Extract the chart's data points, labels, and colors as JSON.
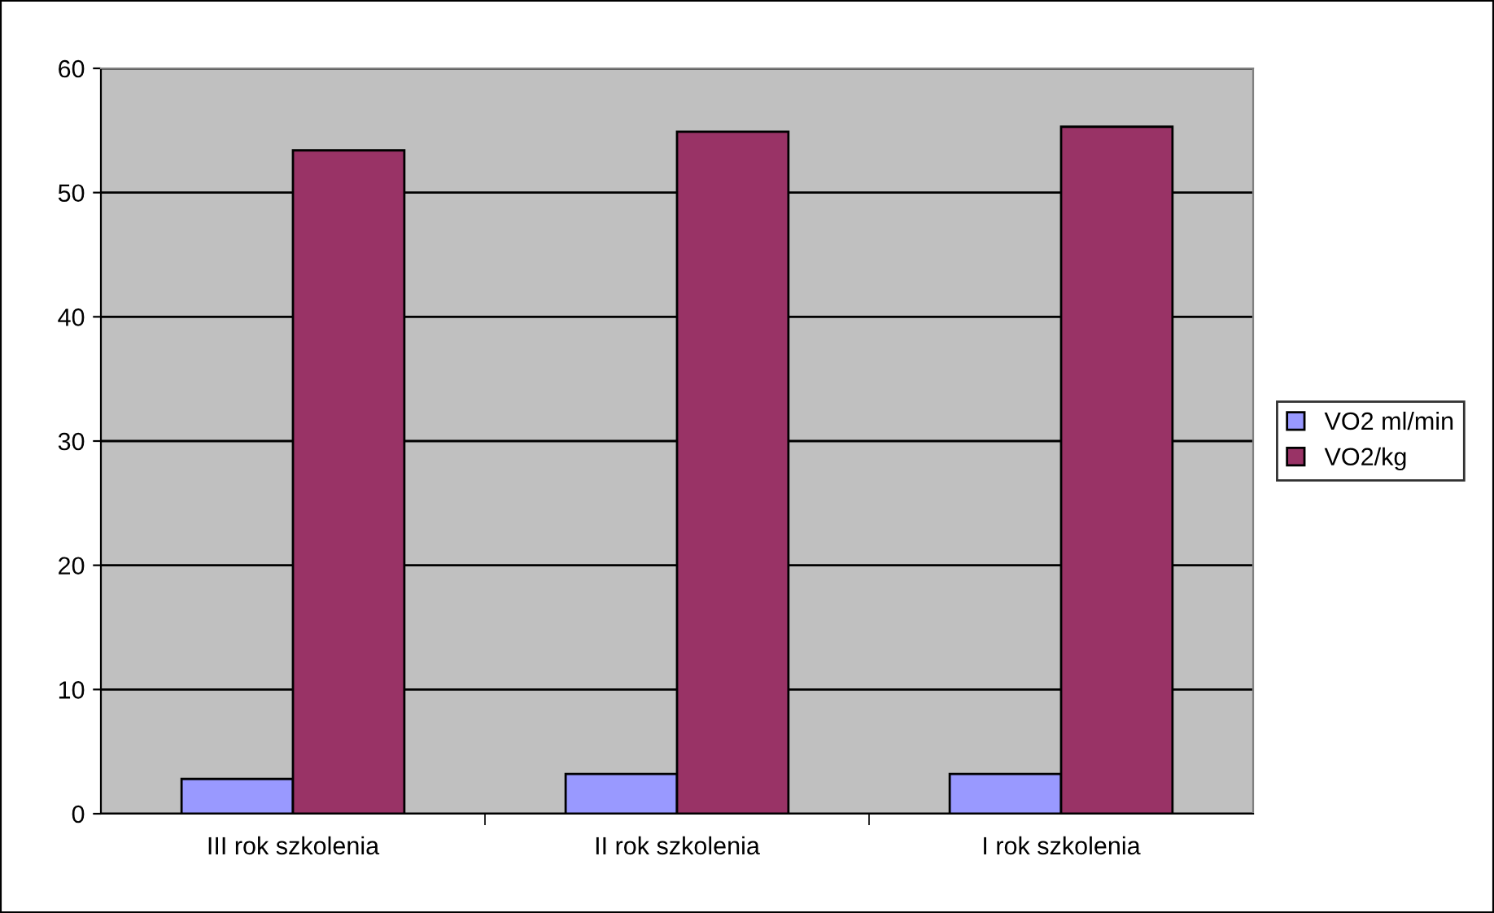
{
  "chart_data": {
    "type": "bar",
    "categories": [
      "III rok szkolenia",
      "II rok szkolenia",
      "I rok szkolenia"
    ],
    "series": [
      {
        "name": "VO2 ml/min",
        "color": "#9999ff",
        "values": [
          2.8,
          3.2,
          3.2
        ]
      },
      {
        "name": "VO2/kg",
        "color": "#993366",
        "values": [
          53.4,
          54.9,
          55.3
        ]
      }
    ],
    "ylim": [
      0,
      60
    ],
    "yticks": [
      0,
      10,
      20,
      30,
      40,
      50,
      60
    ],
    "grid": "y",
    "legend": "right"
  }
}
